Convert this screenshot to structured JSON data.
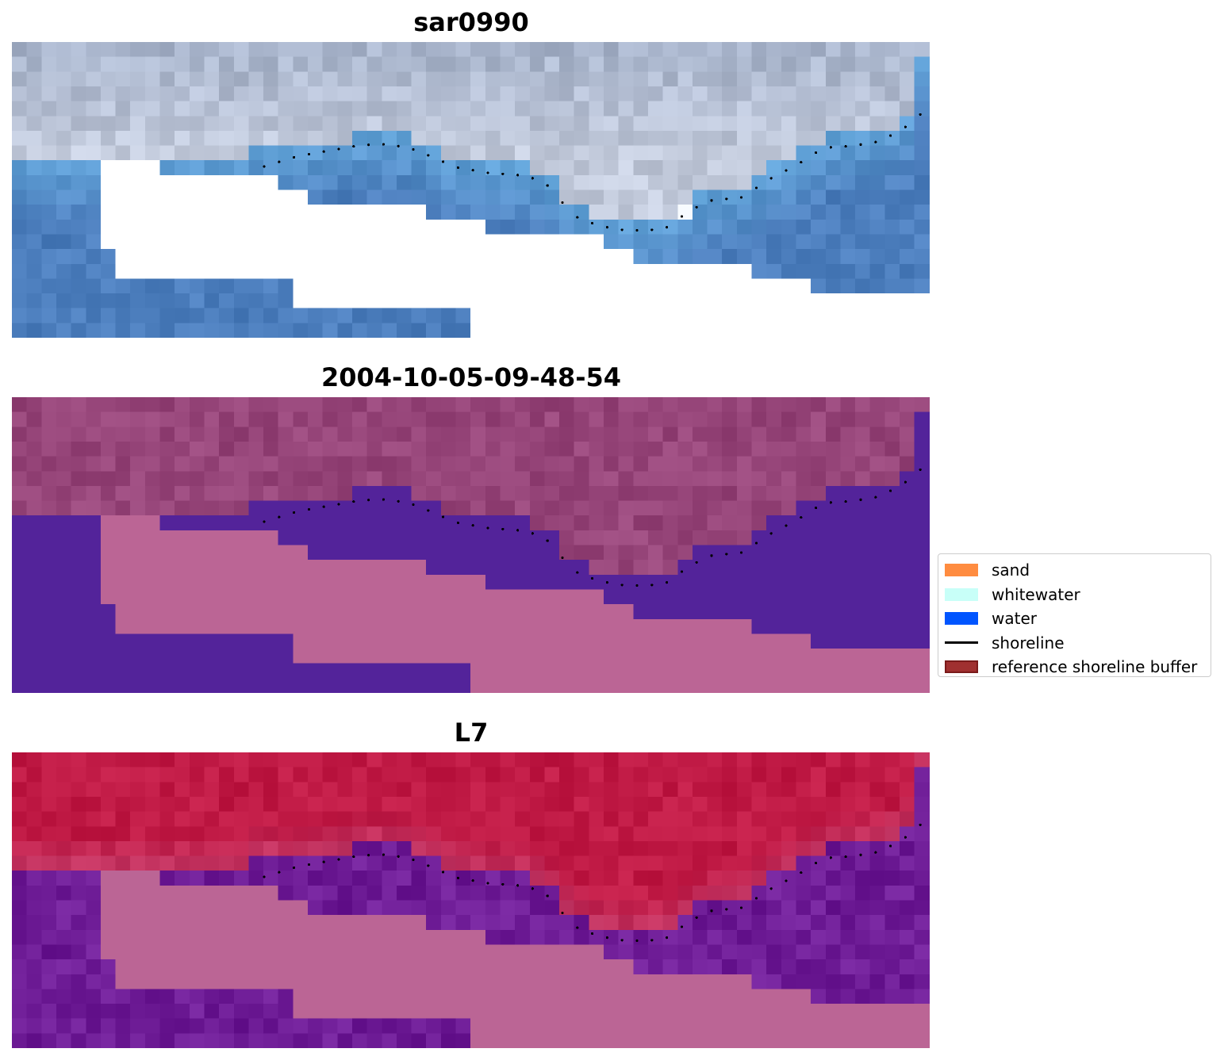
{
  "panels": [
    {
      "title": "sar0990",
      "kind": "rgb"
    },
    {
      "title": "2004-10-05-09-48-54",
      "kind": "classified"
    },
    {
      "title": "L7",
      "kind": "mndwi"
    }
  ],
  "legend": {
    "items": [
      {
        "label": "sand",
        "type": "patch",
        "color": "#ff8c40"
      },
      {
        "label": "whitewater",
        "type": "patch",
        "color": "#c8fff8"
      },
      {
        "label": "water",
        "type": "patch",
        "color": "#0055ff"
      },
      {
        "label": "shoreline",
        "type": "line",
        "color": "#000000"
      },
      {
        "label": "reference shoreline buffer",
        "type": "patch",
        "color": "#a03030",
        "edge": "#7a1a1a"
      }
    ]
  },
  "colors": {
    "nodata_rgb": "#ffffff",
    "buffer_fill": "#bb6595",
    "classified_water": "#53239a",
    "classified_land": "#964579",
    "mndwi_land": "#c01a45",
    "mndwi_water": "#6e1c96",
    "rgb_sky": "#a7b4cb",
    "rgb_water": "#4c7ebd",
    "rgb_whitewater": "#f2f6fb",
    "shoreline_dots": "#000000"
  }
}
